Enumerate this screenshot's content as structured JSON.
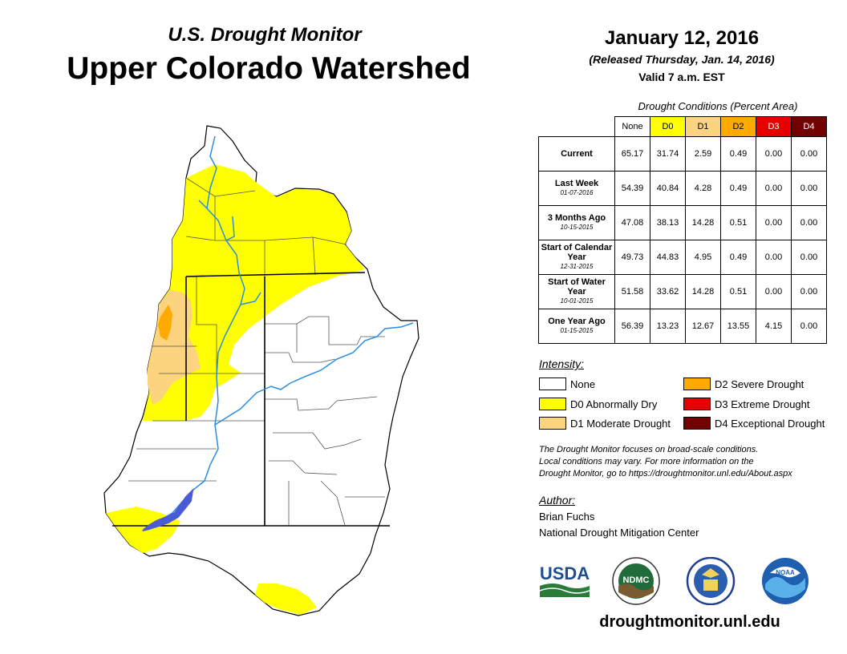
{
  "header": {
    "subtitle": "U.S. Drought Monitor",
    "title": "Upper Colorado Watershed",
    "date": "January 12, 2016",
    "released": "(Released Thursday, Jan. 14, 2016)",
    "valid": "Valid 7 a.m. EST"
  },
  "colors": {
    "none": "#ffffff",
    "d0": "#ffff00",
    "d1": "#fcd37f",
    "d2": "#ffaa00",
    "d3": "#e60000",
    "d4": "#730000",
    "river": "#2b8ce0",
    "lake": "#4a5bd6"
  },
  "conditions": {
    "title": "Drought Conditions (Percent Area)",
    "columns": [
      "None",
      "D0",
      "D1",
      "D2",
      "D3",
      "D4"
    ],
    "rows": [
      {
        "label": "Current",
        "date": "",
        "values": [
          "65.17",
          "31.74",
          "2.59",
          "0.49",
          "0.00",
          "0.00"
        ]
      },
      {
        "label": "Last Week",
        "date": "01-07-2016",
        "values": [
          "54.39",
          "40.84",
          "4.28",
          "0.49",
          "0.00",
          "0.00"
        ]
      },
      {
        "label": "3 Months Ago",
        "date": "10-15-2015",
        "values": [
          "47.08",
          "38.13",
          "14.28",
          "0.51",
          "0.00",
          "0.00"
        ]
      },
      {
        "label": "Start of Calendar Year",
        "date": "12-31-2015",
        "values": [
          "49.73",
          "44.83",
          "4.95",
          "0.49",
          "0.00",
          "0.00"
        ]
      },
      {
        "label": "Start of Water Year",
        "date": "10-01-2015",
        "values": [
          "51.58",
          "33.62",
          "14.28",
          "0.51",
          "0.00",
          "0.00"
        ]
      },
      {
        "label": "One Year Ago",
        "date": "01-15-2015",
        "values": [
          "56.39",
          "13.23",
          "12.67",
          "13.55",
          "4.15",
          "0.00"
        ]
      }
    ]
  },
  "legend": {
    "title": "Intensity:",
    "items": [
      {
        "label": "None"
      },
      {
        "label": "D0 Abnormally Dry"
      },
      {
        "label": "D1 Moderate Drought"
      },
      {
        "label": "D2 Severe Drought"
      },
      {
        "label": "D3 Extreme Drought"
      },
      {
        "label": "D4 Exceptional Drought"
      }
    ]
  },
  "note": {
    "line1": "The Drought Monitor focuses on broad-scale conditions.",
    "line2": "Local conditions may vary. For more information on the",
    "line3": "Drought Monitor, go to https://droughtmonitor.unl.edu/About.aspx"
  },
  "author": {
    "title": "Author:",
    "name": "Brian Fuchs",
    "org": "National Drought Mitigation Center"
  },
  "logos": {
    "usda": "USDA",
    "ndmc": "NDMC",
    "noaa": "NOAA"
  },
  "footer": {
    "url": "droughtmonitor.unl.edu"
  }
}
